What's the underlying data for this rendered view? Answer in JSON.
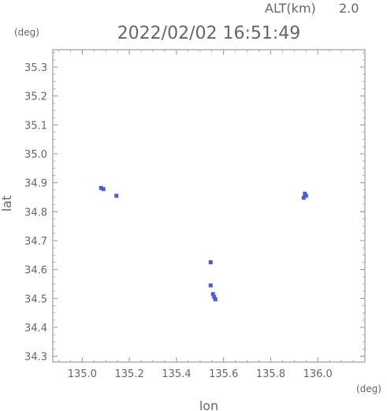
{
  "header": {
    "altitude_label": "ALT(km)",
    "altitude_value": "2.0",
    "timestamp": "2022/02/02 16:51:49"
  },
  "chart_data": {
    "type": "scatter",
    "title": "2022/02/02 16:51:49",
    "xlabel": "lon",
    "ylabel": "lat",
    "x_unit": "(deg)",
    "y_unit": "(deg)",
    "xlim": [
      134.875,
      136.2
    ],
    "ylim": [
      34.28,
      35.36
    ],
    "x_ticks": [
      135.0,
      135.2,
      135.4,
      135.6,
      135.8,
      136.0
    ],
    "x_tick_labels": [
      "135.0",
      "135.2",
      "135.4",
      "135.6",
      "135.8",
      "136.0"
    ],
    "y_ticks": [
      34.3,
      34.4,
      34.5,
      34.6,
      34.7,
      34.8,
      34.9,
      35.0,
      35.1,
      35.2,
      35.3
    ],
    "y_tick_labels": [
      "34.3",
      "34.4",
      "34.5",
      "34.6",
      "34.7",
      "34.8",
      "34.9",
      "35.0",
      "35.1",
      "35.2",
      "35.3"
    ],
    "grid": false,
    "marker_color": "#4a5bd8",
    "series": [
      {
        "points": [
          {
            "lon": 135.08,
            "lat": 34.882
          },
          {
            "lon": 135.09,
            "lat": 34.878
          },
          {
            "lon": 135.145,
            "lat": 34.855
          },
          {
            "lon": 135.545,
            "lat": 34.625
          },
          {
            "lon": 135.545,
            "lat": 34.545
          },
          {
            "lon": 135.555,
            "lat": 34.515
          },
          {
            "lon": 135.56,
            "lat": 34.505
          },
          {
            "lon": 135.565,
            "lat": 34.497
          },
          {
            "lon": 135.945,
            "lat": 34.862
          },
          {
            "lon": 135.95,
            "lat": 34.855
          },
          {
            "lon": 135.94,
            "lat": 34.848
          }
        ]
      }
    ]
  }
}
